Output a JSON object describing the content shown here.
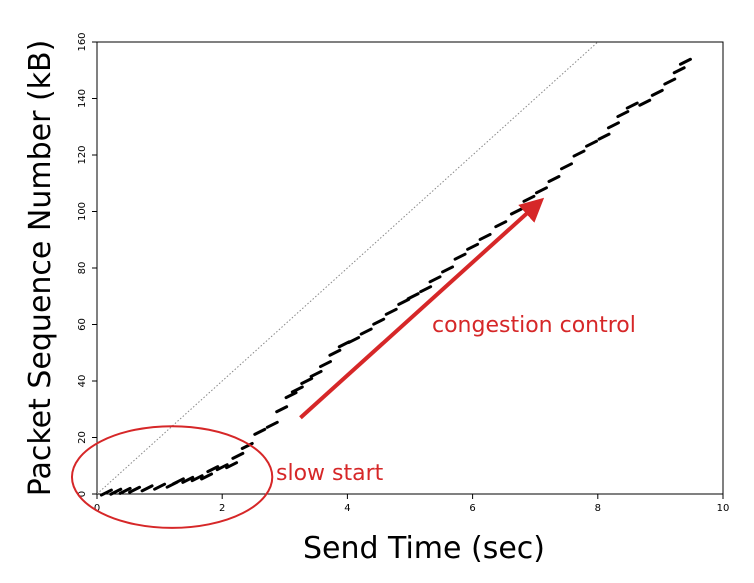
{
  "chart_data": {
    "type": "scatter",
    "title": "",
    "xlabel": "Send Time (sec)",
    "ylabel": "Packet Sequence Number (kB)",
    "xlim": [
      0,
      10
    ],
    "ylim": [
      0,
      160
    ],
    "xticks": [
      0,
      2,
      4,
      6,
      8,
      10
    ],
    "yticks": [
      0,
      20,
      40,
      60,
      80,
      100,
      120,
      140,
      160
    ],
    "grid": false,
    "series": [
      {
        "values": [
          [
            0.15,
            0.5
          ],
          [
            0.3,
            0.8
          ],
          [
            0.45,
            1.1
          ],
          [
            0.6,
            1.5
          ],
          [
            0.8,
            2.0
          ],
          [
            1.0,
            2.6
          ],
          [
            1.2,
            3.3
          ],
          [
            1.3,
            4.5
          ],
          [
            1.45,
            5.0
          ],
          [
            1.6,
            5.6
          ],
          [
            1.75,
            6.2
          ],
          [
            1.85,
            8.8
          ],
          [
            2.0,
            9.5
          ],
          [
            2.15,
            10.2
          ],
          [
            2.25,
            13.5
          ],
          [
            2.4,
            17.0
          ],
          [
            2.6,
            22.0
          ],
          [
            2.8,
            24.5
          ],
          [
            2.95,
            30.0
          ],
          [
            3.1,
            35.0
          ],
          [
            3.2,
            37.0
          ],
          [
            3.35,
            40.0
          ],
          [
            3.5,
            42.5
          ],
          [
            3.65,
            46.0
          ],
          [
            3.8,
            50.0
          ],
          [
            3.95,
            53.0
          ],
          [
            4.1,
            54.5
          ],
          [
            4.3,
            57.5
          ],
          [
            4.5,
            61.0
          ],
          [
            4.7,
            64.5
          ],
          [
            4.9,
            68.0
          ],
          [
            5.05,
            70.0
          ],
          [
            5.25,
            72.5
          ],
          [
            5.4,
            76.0
          ],
          [
            5.6,
            79.5
          ],
          [
            5.8,
            84.0
          ],
          [
            6.0,
            87.5
          ],
          [
            6.2,
            91.0
          ],
          [
            6.45,
            95.5
          ],
          [
            6.7,
            100.0
          ],
          [
            6.9,
            104.5
          ],
          [
            7.1,
            107.5
          ],
          [
            7.3,
            111.5
          ],
          [
            7.5,
            116.0
          ],
          [
            7.7,
            120.5
          ],
          [
            7.9,
            124.0
          ],
          [
            8.1,
            126.5
          ],
          [
            8.25,
            130.5
          ],
          [
            8.4,
            134.5
          ],
          [
            8.55,
            137.5
          ],
          [
            8.75,
            138.5
          ],
          [
            8.95,
            142.0
          ],
          [
            9.15,
            146.0
          ],
          [
            9.3,
            150.0
          ],
          [
            9.4,
            153.0
          ]
        ]
      }
    ],
    "reference_line": [
      [
        0,
        0
      ],
      [
        8.0,
        160
      ]
    ],
    "annotations": [
      {
        "text": "congestion control",
        "color": "#d62728",
        "arrow_from": [
          3.25,
          27
        ],
        "arrow_to": [
          7.0,
          102
        ]
      },
      {
        "text": "slow start",
        "color": "#d62728",
        "ellipse_center": [
          1.2,
          6
        ],
        "ellipse_radius": [
          1.6,
          18
        ]
      }
    ],
    "colors": {
      "points": "#000000",
      "reference": "#888888",
      "annotation": "#d62728"
    }
  }
}
